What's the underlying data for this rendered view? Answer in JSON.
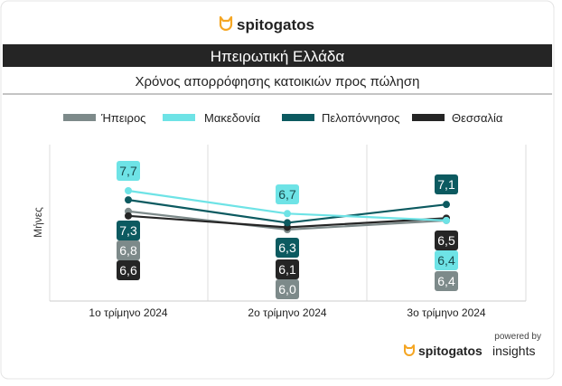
{
  "brand": {
    "logo_text": "spitogatos",
    "powered_by": "powered by",
    "footer_logo_text": "spitogatos",
    "footer_logo_suffix": "insights"
  },
  "colors": {
    "Ήπειρος": "#7d8a8a",
    "Μακεδονία": "#6ee3e6",
    "Πελοπόννησος": "#0c5a60",
    "Θεσσαλία": "#252525",
    "accent": "#f5a623"
  },
  "chart_data": {
    "type": "line",
    "title": "Ηπειρωτική Ελλάδα",
    "subtitle": "Χρόνος απορρόφησης κατοικιών προς πώληση",
    "xlabel": "",
    "ylabel": "Μήνες",
    "categories": [
      "1ο τρίμηνο 2024",
      "2ο τρίμηνο 2024",
      "3ο τρίμηνο 2024"
    ],
    "series": [
      {
        "name": "Ήπειρος",
        "values": [
          6.8,
          6.0,
          6.4
        ]
      },
      {
        "name": "Μακεδονία",
        "values": [
          7.7,
          6.7,
          6.4
        ]
      },
      {
        "name": "Πελοπόννησος",
        "values": [
          7.3,
          6.3,
          7.1
        ]
      },
      {
        "name": "Θεσσαλία",
        "values": [
          6.6,
          6.1,
          6.5
        ]
      }
    ],
    "data_labels": [
      [
        "6,8",
        "6,0",
        "6,4"
      ],
      [
        "7,7",
        "6,7",
        "6,4"
      ],
      [
        "7,3",
        "6,3",
        "7,1"
      ],
      [
        "6,6",
        "6,1",
        "6,5"
      ]
    ],
    "legend_position": "top",
    "grid": "vertical"
  }
}
